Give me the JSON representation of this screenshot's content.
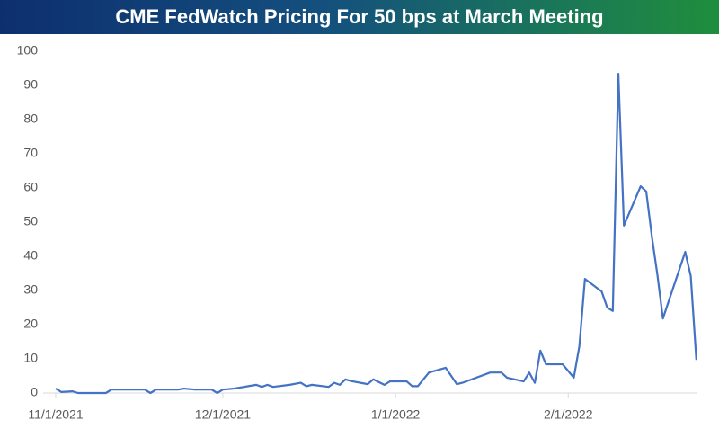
{
  "chart_data": {
    "type": "line",
    "title": "CME FedWatch Pricing For 50 bps at March Meeting",
    "x": [
      "2021-11-01",
      "2021-11-02",
      "2021-11-04",
      "2021-11-05",
      "2021-11-10",
      "2021-11-11",
      "2021-11-17",
      "2021-11-18",
      "2021-11-19",
      "2021-11-23",
      "2021-11-24",
      "2021-11-26",
      "2021-11-29",
      "2021-11-30",
      "2021-12-01",
      "2021-12-03",
      "2021-12-07",
      "2021-12-08",
      "2021-12-09",
      "2021-12-10",
      "2021-12-13",
      "2021-12-15",
      "2021-12-16",
      "2021-12-17",
      "2021-12-20",
      "2021-12-21",
      "2021-12-22",
      "2021-12-23",
      "2021-12-24",
      "2021-12-27",
      "2021-12-28",
      "2021-12-30",
      "2021-12-31",
      "2022-01-03",
      "2022-01-04",
      "2022-01-05",
      "2022-01-07",
      "2022-01-10",
      "2022-01-12",
      "2022-01-13",
      "2022-01-18",
      "2022-01-20",
      "2022-01-21",
      "2022-01-24",
      "2022-01-25",
      "2022-01-26",
      "2022-01-27",
      "2022-01-28",
      "2022-01-31",
      "2022-02-02",
      "2022-02-03",
      "2022-02-04",
      "2022-02-07",
      "2022-02-08",
      "2022-02-09",
      "2022-02-10",
      "2022-02-11",
      "2022-02-14",
      "2022-02-15",
      "2022-02-16",
      "2022-02-17",
      "2022-02-18",
      "2022-02-22",
      "2022-02-23",
      "2022-02-24"
    ],
    "series": [
      {
        "name": "50 bps",
        "color": "#4472c4",
        "values": [
          1.3,
          0.3,
          0.5,
          0,
          0,
          1,
          1,
          0,
          1,
          1,
          1.3,
          1,
          1,
          0,
          1,
          1.3,
          2.4,
          1.8,
          2.4,
          1.8,
          2.4,
          3,
          2,
          2.4,
          1.8,
          3,
          2.4,
          4,
          3.5,
          2.6,
          4,
          2.4,
          3.4,
          3.4,
          2,
          2,
          6,
          7.4,
          2.6,
          3,
          6,
          6,
          4.5,
          3.4,
          6,
          3,
          12.4,
          8.4,
          8.4,
          4.5,
          13.7,
          33.4,
          29.7,
          25,
          24,
          93.4,
          49,
          60.5,
          59,
          46,
          34.7,
          21.8,
          41.3,
          34.2,
          9.7
        ]
      }
    ],
    "xlim": [
      "2021-11-01",
      "2022-02-25"
    ],
    "xticks": [
      {
        "value": "2021-11-01",
        "label": "11/1/2021"
      },
      {
        "value": "2021-12-01",
        "label": "12/1/2021"
      },
      {
        "value": "2022-01-01",
        "label": "1/1/2022"
      },
      {
        "value": "2022-02-01",
        "label": "2/1/2022"
      }
    ],
    "ylim": [
      0,
      100
    ],
    "yticks": [
      0,
      10,
      20,
      30,
      40,
      50,
      60,
      70,
      80,
      90,
      100
    ],
    "grid": false
  }
}
